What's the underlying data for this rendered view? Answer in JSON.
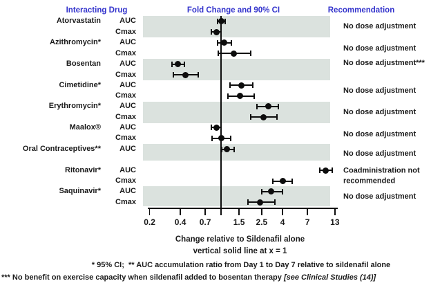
{
  "headers": {
    "interacting_drug": "Interacting Drug",
    "fold_change": "Fold Change and 90% CI",
    "recommendation": "Recommendation"
  },
  "footer": {
    "xlabel": "Change relative to Sildenafil alone",
    "vline_note": "vertical solid line at x = 1",
    "footnote_1": "* 95% CI;  ** AUC accumulation ratio from Day 1 to Day 7 relative to sildenafil alone",
    "footnote_2_bold": "*** No benefit on exercise capacity when sildenafil added to bosentan therapy ",
    "footnote_2_italic": "[see Clinical Studies (14)]"
  },
  "colors": {
    "header_blue": "#3333cc",
    "band_gray": "#dbe2de",
    "marker_black": "#0d0d0d",
    "text_black": "#1a1a1a"
  },
  "chart_data": {
    "type": "scatter",
    "subtype": "forest-plot",
    "title": "Fold Change and 90% CI",
    "xlabel": "Change relative to Sildenafil alone",
    "x_scale": "log",
    "xlim": [
      0.17,
      14
    ],
    "x_ticks": [
      0.2,
      0.4,
      0.7,
      1,
      1.5,
      2.5,
      4,
      7,
      13
    ],
    "x_tick_labels": [
      "0.2",
      "0.4",
      "0.7",
      "",
      "1.5",
      "2.5",
      "4",
      "7",
      "13"
    ],
    "vertical_reference_line_x": 1,
    "groups": [
      {
        "drug": "Atorvastatin",
        "shaded": true,
        "recommendation": "No dose adjustment",
        "rows": [
          {
            "metric": "AUC",
            "value": 1.0,
            "ci_low": 0.93,
            "ci_high": 1.1
          },
          {
            "metric": "Cmax",
            "value": 0.9,
            "ci_low": 0.81,
            "ci_high": 1.0
          }
        ]
      },
      {
        "drug": "Azithromycin*",
        "shaded": false,
        "recommendation": "No dose adjustment",
        "rows": [
          {
            "metric": "AUC",
            "value": 1.08,
            "ci_low": 0.92,
            "ci_high": 1.26
          },
          {
            "metric": "Cmax",
            "value": 1.33,
            "ci_low": 0.94,
            "ci_high": 1.95
          }
        ]
      },
      {
        "drug": "Bosentan",
        "shaded": true,
        "recommendation": "No dose adjustment***",
        "rows": [
          {
            "metric": "AUC",
            "value": 0.38,
            "ci_low": 0.33,
            "ci_high": 0.44
          },
          {
            "metric": "Cmax",
            "value": 0.45,
            "ci_low": 0.34,
            "ci_high": 0.6
          }
        ]
      },
      {
        "drug": "Cimetidine*",
        "shaded": false,
        "recommendation": "No dose adjustment",
        "rows": [
          {
            "metric": "AUC",
            "value": 1.58,
            "ci_low": 1.23,
            "ci_high": 2.03
          },
          {
            "metric": "Cmax",
            "value": 1.54,
            "ci_low": 1.17,
            "ci_high": 2.1
          }
        ]
      },
      {
        "drug": "Erythromycin*",
        "shaded": true,
        "recommendation": "No dose adjustment",
        "rows": [
          {
            "metric": "AUC",
            "value": 2.9,
            "ci_low": 2.24,
            "ci_high": 3.65
          },
          {
            "metric": "Cmax",
            "value": 2.6,
            "ci_low": 1.94,
            "ci_high": 3.5
          }
        ]
      },
      {
        "drug": "Maalox®",
        "shaded": false,
        "recommendation": "No dose adjustment",
        "rows": [
          {
            "metric": "AUC",
            "value": 0.9,
            "ci_low": 0.81,
            "ci_high": 1.0
          },
          {
            "metric": "Cmax",
            "value": 1.0,
            "ci_low": 0.82,
            "ci_high": 1.25
          }
        ]
      },
      {
        "drug": "Oral Contraceptives**",
        "shaded": true,
        "recommendation": "No dose adjustment",
        "rows": [
          {
            "metric": "AUC",
            "value": 1.15,
            "ci_low": 1.02,
            "ci_high": 1.34
          }
        ]
      },
      {
        "drug": "Ritonavir*",
        "shaded": false,
        "recommendation": "Coadministration not recommended",
        "rows": [
          {
            "metric": "AUC",
            "value": 10.5,
            "ci_low": 9.3,
            "ci_high": 12.2
          },
          {
            "metric": "Cmax",
            "value": 4.0,
            "ci_low": 3.2,
            "ci_high": 5.0
          }
        ]
      },
      {
        "drug": "Saquinavir*",
        "shaded": true,
        "recommendation": "No dose adjustment",
        "rows": [
          {
            "metric": "AUC",
            "value": 3.1,
            "ci_low": 2.52,
            "ci_high": 4.0
          },
          {
            "metric": "Cmax",
            "value": 2.4,
            "ci_low": 1.84,
            "ci_high": 3.35
          }
        ]
      }
    ]
  }
}
